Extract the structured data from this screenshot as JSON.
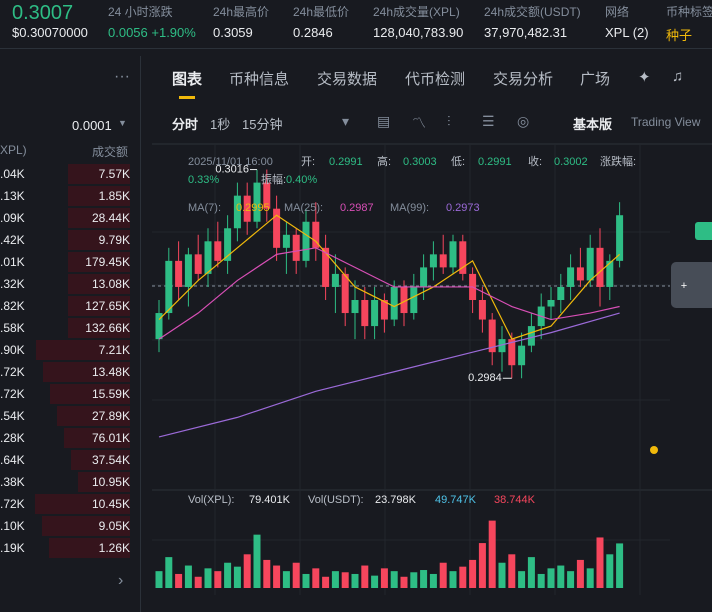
{
  "header": {
    "price": "0.3007",
    "price_usd": "$0.30070000",
    "stats": [
      {
        "label": "24 小时涨跌",
        "value": "0.0056 +1.90%",
        "color": "#2ebd85"
      },
      {
        "label": "24h最高价",
        "value": "0.3059",
        "color": "#eaecef"
      },
      {
        "label": "24h最低价",
        "value": "0.2846",
        "color": "#eaecef"
      },
      {
        "label": "24h成交量(XPL)",
        "value": "128,040,783.90",
        "color": "#eaecef"
      },
      {
        "label": "24h成交额(USDT)",
        "value": "37,970,482.31",
        "color": "#eaecef"
      },
      {
        "label": "网络",
        "value": "XPL (2)",
        "color": "#eaecef"
      },
      {
        "label": "币种标签",
        "value": "种子",
        "color": "#f0b90b"
      }
    ]
  },
  "order_book": {
    "precision": "0.0001",
    "col_amount": "XPL)",
    "col_total": "成交额",
    "rows": [
      [
        ".04K",
        "7.57K"
      ],
      [
        ".13K",
        "1.85K"
      ],
      [
        ".09K",
        "28.44K"
      ],
      [
        ".42K",
        "9.79K"
      ],
      [
        ".01K",
        "179.45K"
      ],
      [
        ".32K",
        "13.08K"
      ],
      [
        ".82K",
        "127.65K"
      ],
      [
        ".58K",
        "132.66K"
      ],
      [
        ".90K",
        "7.21K"
      ],
      [
        ".72K",
        "13.48K"
      ],
      [
        ".72K",
        "15.59K"
      ],
      [
        ".54K",
        "27.89K"
      ],
      [
        ".28K",
        "76.01K"
      ],
      [
        ".64K",
        "37.54K"
      ],
      [
        ".38K",
        "10.95K"
      ],
      [
        ".72K",
        "10.45K"
      ],
      [
        ".10K",
        "9.05K"
      ],
      [
        ".19K",
        "1.26K"
      ]
    ]
  },
  "tabs": [
    "图表",
    "币种信息",
    "交易数据",
    "代币检测",
    "交易分析",
    "广场"
  ],
  "toolbar": {
    "intervals": [
      "分时",
      "1秒",
      "15分钟"
    ],
    "modes": [
      "基本版",
      "Trading View"
    ]
  },
  "chart_data": {
    "type": "candlestick",
    "info": {
      "time": "2025/11/01 16:00",
      "fields": [
        [
          "开:",
          "0.2991"
        ],
        [
          "高:",
          "0.3003"
        ],
        [
          "低:",
          "0.2991"
        ],
        [
          "收:",
          "0.3002"
        ],
        [
          "涨跌幅:",
          "0.33%"
        ],
        [
          "振幅:",
          "0.40%"
        ]
      ]
    },
    "up_color": "#2ebd85",
    "down_color": "#f6465d",
    "ylim": [
      0.2973,
      0.3019
    ],
    "ohlc": [
      [
        0.299,
        0.2996,
        0.2988,
        0.2994
      ],
      [
        0.2994,
        0.3004,
        0.2993,
        0.3002
      ],
      [
        0.3002,
        0.3005,
        0.2996,
        0.2998
      ],
      [
        0.2998,
        0.3004,
        0.2995,
        0.3003
      ],
      [
        0.3003,
        0.3006,
        0.2999,
        0.3
      ],
      [
        0.3,
        0.3007,
        0.2998,
        0.3005
      ],
      [
        0.3005,
        0.3008,
        0.3001,
        0.3002
      ],
      [
        0.3002,
        0.3009,
        0.3,
        0.3007
      ],
      [
        0.3007,
        0.3014,
        0.3005,
        0.3012
      ],
      [
        0.3012,
        0.3014,
        0.3006,
        0.3008
      ],
      [
        0.3008,
        0.3016,
        0.3007,
        0.3014
      ],
      [
        0.3014,
        0.3016,
        0.3008,
        0.301
      ],
      [
        0.301,
        0.3012,
        0.3002,
        0.3004
      ],
      [
        0.3004,
        0.3008,
        0.3,
        0.3006
      ],
      [
        0.3006,
        0.3007,
        0.3,
        0.3002
      ],
      [
        0.3002,
        0.301,
        0.3001,
        0.3008
      ],
      [
        0.3008,
        0.3011,
        0.3002,
        0.3004
      ],
      [
        0.3004,
        0.3006,
        0.2996,
        0.2998
      ],
      [
        0.2998,
        0.3003,
        0.2994,
        0.3
      ],
      [
        0.3,
        0.3001,
        0.2992,
        0.2994
      ],
      [
        0.2994,
        0.2999,
        0.299,
        0.2996
      ],
      [
        0.2996,
        0.2998,
        0.299,
        0.2992
      ],
      [
        0.2992,
        0.2998,
        0.299,
        0.2996
      ],
      [
        0.2996,
        0.2997,
        0.2991,
        0.2993
      ],
      [
        0.2993,
        0.2999,
        0.2992,
        0.2998
      ],
      [
        0.2998,
        0.2999,
        0.2992,
        0.2994
      ],
      [
        0.2994,
        0.3,
        0.2993,
        0.2998
      ],
      [
        0.2998,
        0.3003,
        0.2996,
        0.3001
      ],
      [
        0.3001,
        0.3005,
        0.2999,
        0.3003
      ],
      [
        0.3003,
        0.3006,
        0.3,
        0.3001
      ],
      [
        0.3001,
        0.3006,
        0.3,
        0.3005
      ],
      [
        0.3005,
        0.3006,
        0.2999,
        0.3
      ],
      [
        0.3,
        0.3001,
        0.2994,
        0.2996
      ],
      [
        0.2996,
        0.2998,
        0.2991,
        0.2993
      ],
      [
        0.2993,
        0.2994,
        0.2986,
        0.2988
      ],
      [
        0.2988,
        0.2992,
        0.2985,
        0.299
      ],
      [
        0.299,
        0.2991,
        0.2984,
        0.2986
      ],
      [
        0.2986,
        0.2991,
        0.2984,
        0.2989
      ],
      [
        0.2989,
        0.2994,
        0.2988,
        0.2992
      ],
      [
        0.2992,
        0.2997,
        0.299,
        0.2995
      ],
      [
        0.2995,
        0.2998,
        0.2993,
        0.2996
      ],
      [
        0.2996,
        0.3,
        0.2994,
        0.2998
      ],
      [
        0.2998,
        0.3003,
        0.2996,
        0.3001
      ],
      [
        0.3001,
        0.3004,
        0.2998,
        0.2999
      ],
      [
        0.2999,
        0.3006,
        0.2998,
        0.3004
      ],
      [
        0.3004,
        0.3007,
        0.2995,
        0.2998
      ],
      [
        0.2998,
        0.3003,
        0.2996,
        0.3002
      ],
      [
        0.3002,
        0.3011,
        0.3001,
        0.3009
      ]
    ],
    "ma": [
      {
        "name": "MA(7):",
        "value": "0.2995",
        "color": "#f0b90b",
        "points": [
          [
            0,
            0.2993
          ],
          [
            4,
            0.2999
          ],
          [
            8,
            0.3004
          ],
          [
            12,
            0.3009
          ],
          [
            16,
            0.3005
          ],
          [
            20,
            0.2998
          ],
          [
            24,
            0.2995
          ],
          [
            28,
            0.2998
          ],
          [
            32,
            0.3002
          ],
          [
            36,
            0.299
          ],
          [
            40,
            0.2992
          ],
          [
            44,
            0.2999
          ],
          [
            47,
            0.3003
          ]
        ]
      },
      {
        "name": "MA(25):",
        "value": "0.2987",
        "color": "#d84fb6",
        "points": [
          [
            0,
            0.299
          ],
          [
            4,
            0.2994
          ],
          [
            8,
            0.2999
          ],
          [
            12,
            0.3003
          ],
          [
            16,
            0.3004
          ],
          [
            20,
            0.3001
          ],
          [
            24,
            0.2998
          ],
          [
            28,
            0.2998
          ],
          [
            32,
            0.2998
          ],
          [
            36,
            0.2995
          ],
          [
            40,
            0.2993
          ],
          [
            44,
            0.2994
          ],
          [
            47,
            0.2995
          ]
        ]
      },
      {
        "name": "MA(99):",
        "value": "0.2973",
        "color": "#9b6ad8",
        "points": [
          [
            0,
            0.2975
          ],
          [
            8,
            0.2978
          ],
          [
            16,
            0.2982
          ],
          [
            24,
            0.2985
          ],
          [
            32,
            0.2988
          ],
          [
            40,
            0.2991
          ],
          [
            47,
            0.2994
          ]
        ]
      }
    ],
    "annotations": {
      "high": "0.3016",
      "low": "0.2984"
    },
    "volume": {
      "labels": [
        [
          "Vol(XPL):",
          "79.401K"
        ],
        [
          "Vol(USDT):",
          "23.798K"
        ]
      ],
      "ma_values": [
        {
          "value": "49.747K",
          "color": "#4fc3e8"
        },
        {
          "value": "38.744K",
          "color": "#f6465d"
        }
      ],
      "ylim": [
        0,
        130
      ],
      "values": [
        30,
        55,
        25,
        40,
        20,
        35,
        30,
        45,
        38,
        60,
        95,
        50,
        40,
        30,
        45,
        25,
        35,
        20,
        30,
        28,
        25,
        40,
        22,
        35,
        30,
        20,
        28,
        32,
        25,
        45,
        30,
        38,
        50,
        80,
        120,
        45,
        60,
        30,
        55,
        25,
        35,
        40,
        30,
        50,
        35,
        90,
        60,
        79.4
      ]
    }
  }
}
